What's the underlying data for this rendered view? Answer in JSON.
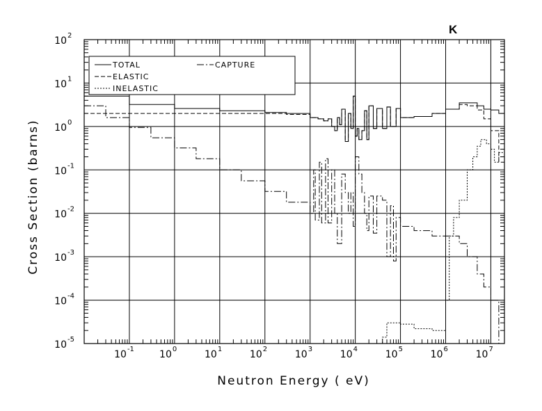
{
  "chart_data": {
    "type": "line",
    "title": "K",
    "xlabel": "Neutron Energy ( eV)",
    "ylabel": "Cross Section (barns)",
    "x_scale": "log",
    "y_scale": "log",
    "xlim": [
      0.01,
      20000000
    ],
    "ylim": [
      1e-05,
      100
    ],
    "grid": true,
    "legend_position": "top-left",
    "x_ticks": [
      {
        "base": "10",
        "exp": "-1",
        "value": 0.1
      },
      {
        "base": "10",
        "exp": "0",
        "value": 1
      },
      {
        "base": "10",
        "exp": "1",
        "value": 10
      },
      {
        "base": "10",
        "exp": "2",
        "value": 100
      },
      {
        "base": "10",
        "exp": "3",
        "value": 1000
      },
      {
        "base": "10",
        "exp": "4",
        "value": 10000
      },
      {
        "base": "10",
        "exp": "5",
        "value": 100000
      },
      {
        "base": "10",
        "exp": "6",
        "value": 1000000
      },
      {
        "base": "10",
        "exp": "7",
        "value": 10000000
      }
    ],
    "y_ticks": [
      {
        "base": "10",
        "exp": "2",
        "value": 100
      },
      {
        "base": "10",
        "exp": "1",
        "value": 10
      },
      {
        "base": "10",
        "exp": "0",
        "value": 1
      },
      {
        "base": "10",
        "exp": "-1",
        "value": 0.1
      },
      {
        "base": "10",
        "exp": "-2",
        "value": 0.01
      },
      {
        "base": "10",
        "exp": "-3",
        "value": 0.001
      },
      {
        "base": "10",
        "exp": "-4",
        "value": 0.0001
      },
      {
        "base": "10",
        "exp": "-5",
        "value": 1e-05
      }
    ],
    "series": [
      {
        "name": "TOTAL",
        "dash": "solid",
        "x": [
          0.01,
          0.1,
          1,
          10,
          100,
          300,
          1000,
          1500,
          2000,
          2500,
          3000,
          3500,
          4000,
          4500,
          5000,
          6000,
          7000,
          8000,
          9000,
          10000,
          11000,
          12000,
          14000,
          16000,
          18000,
          20000,
          25000,
          30000,
          40000,
          50000,
          60000,
          80000,
          100000,
          200000,
          500000,
          1000000,
          2000000,
          3000000,
          5000000,
          7000000,
          10000000,
          15000000,
          20000000
        ],
        "y": [
          5.0,
          3.2,
          2.6,
          2.3,
          2.1,
          2.0,
          1.6,
          1.5,
          1.35,
          1.5,
          1.0,
          0.8,
          1.6,
          1.1,
          2.5,
          0.45,
          2.0,
          0.9,
          5.0,
          0.6,
          0.9,
          0.5,
          0.8,
          2.3,
          0.5,
          3.0,
          0.9,
          2.6,
          0.9,
          2.8,
          1.0,
          2.6,
          1.6,
          1.7,
          2.0,
          2.5,
          3.5,
          3.5,
          3.0,
          2.5,
          2.4,
          2.0,
          2.0
        ]
      },
      {
        "name": "ELASTIC",
        "dash": "dash",
        "x": [
          0.01,
          0.1,
          1,
          10,
          100,
          300,
          1000,
          1500,
          2000,
          2500,
          3000,
          3500,
          4000,
          4500,
          5000,
          6000,
          7000,
          8000,
          9000,
          10000,
          11000,
          12000,
          14000,
          16000,
          18000,
          20000,
          25000,
          30000,
          40000,
          50000,
          60000,
          80000,
          100000,
          200000,
          500000,
          1000000,
          2000000,
          3000000,
          5000000,
          7000000,
          10000000,
          15000000,
          20000000
        ],
        "y": [
          2.0,
          2.0,
          2.0,
          2.0,
          2.0,
          1.9,
          1.6,
          1.5,
          1.35,
          1.5,
          1.0,
          0.8,
          1.6,
          1.1,
          2.5,
          0.45,
          2.0,
          0.9,
          5.0,
          0.6,
          0.9,
          0.5,
          0.8,
          2.3,
          0.5,
          3.0,
          0.9,
          2.6,
          0.9,
          2.8,
          1.0,
          2.6,
          1.6,
          1.7,
          2.0,
          2.5,
          3.2,
          3.0,
          2.4,
          1.5,
          0.8,
          0.15,
          0.2
        ]
      },
      {
        "name": "CAPTURE",
        "dash": "longdash",
        "x": [
          0.01,
          0.03,
          0.1,
          0.3,
          1,
          3,
          10,
          30,
          100,
          300,
          1000,
          1200,
          1300,
          1600,
          1800,
          2200,
          2500,
          3000,
          3500,
          4000,
          5000,
          6000,
          7000,
          8000,
          9000,
          10000,
          12000,
          14000,
          16000,
          18000,
          20000,
          25000,
          30000,
          40000,
          50000,
          60000,
          70000,
          80000,
          100000,
          200000,
          500000,
          1000000,
          2000000,
          3000000,
          5000000,
          7000000,
          10000000,
          15000000
        ],
        "y": [
          3.0,
          1.6,
          0.95,
          0.55,
          0.32,
          0.18,
          0.1,
          0.056,
          0.032,
          0.018,
          0.01,
          0.1,
          0.007,
          0.15,
          0.006,
          0.18,
          0.006,
          0.1,
          0.01,
          0.002,
          0.08,
          0.03,
          0.01,
          0.03,
          0.005,
          0.2,
          0.08,
          0.03,
          0.01,
          0.004,
          0.025,
          0.0035,
          0.025,
          0.02,
          0.001,
          0.015,
          0.0008,
          0.008,
          0.005,
          0.004,
          0.003,
          0.003,
          0.002,
          0.001,
          0.0004,
          0.0002,
          0.0001,
          1e-05
        ]
      },
      {
        "name": "INELASTIC",
        "dash": "dot",
        "x": [
          10000,
          20000,
          30000,
          40000,
          50000,
          60000,
          80000,
          100000,
          200000,
          500000,
          800000,
          1000000,
          1200000,
          1500000,
          2000000,
          3000000,
          4000000,
          5000000,
          6000000,
          7000000,
          8000000,
          10000000,
          12000000,
          15000000,
          20000000
        ],
        "y": [
          1e-05,
          1e-05,
          1e-05,
          1.4e-05,
          3e-05,
          3e-05,
          3e-05,
          2.8e-05,
          2.2e-05,
          2e-05,
          2e-05,
          0.0001,
          0.003,
          0.008,
          0.02,
          0.1,
          0.2,
          0.35,
          0.5,
          0.5,
          0.4,
          0.3,
          0.15,
          0.25,
          0.3
        ]
      }
    ]
  }
}
